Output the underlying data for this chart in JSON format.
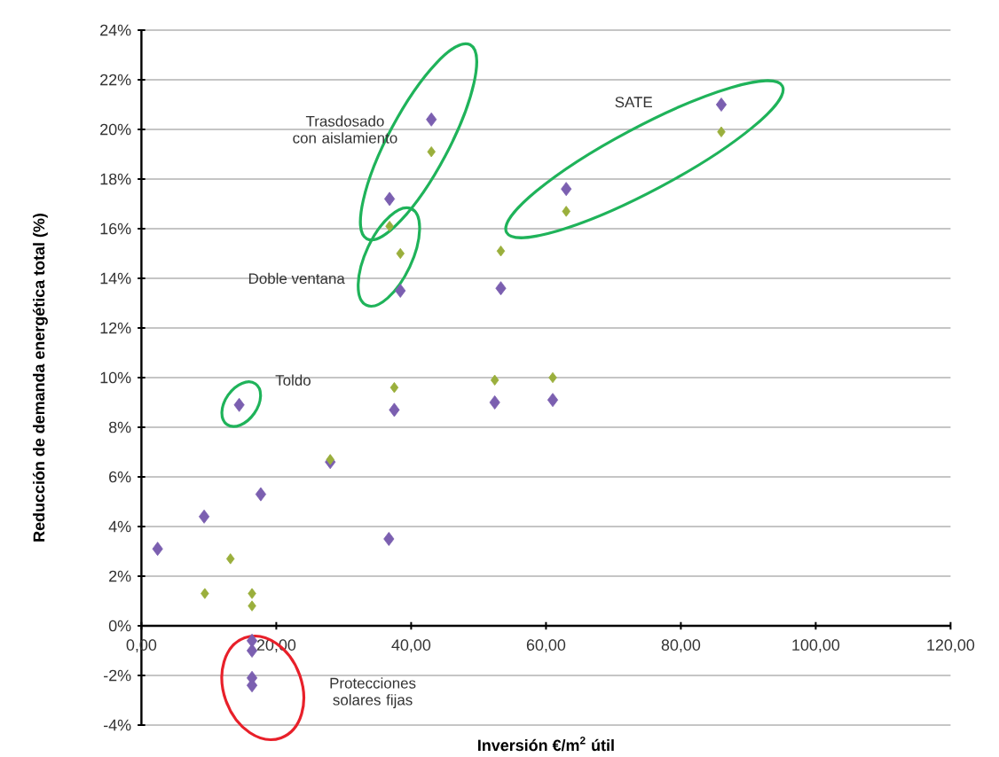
{
  "chart_data": {
    "type": "scatter",
    "xlabel": "Inversión €/m$^{2}$ útil",
    "ylabel": "Reducción de demanda energética total (%)",
    "xlim": [
      0,
      120
    ],
    "ylim": [
      -4,
      24
    ],
    "xticks": [
      {
        "value": 0,
        "label": "0,00"
      },
      {
        "value": 20,
        "label": "20,00"
      },
      {
        "value": 40,
        "label": "40,00"
      },
      {
        "value": 60,
        "label": "60,00"
      },
      {
        "value": 80,
        "label": "80,00"
      },
      {
        "value": 100,
        "label": "100,00"
      },
      {
        "value": 120,
        "label": "120,00"
      }
    ],
    "yticks": [
      {
        "value": -4,
        "label": "-4%"
      },
      {
        "value": -2,
        "label": "-2%"
      },
      {
        "value": 0,
        "label": "0%"
      },
      {
        "value": 2,
        "label": "2%"
      },
      {
        "value": 4,
        "label": "4%"
      },
      {
        "value": 6,
        "label": "6%"
      },
      {
        "value": 8,
        "label": "8%"
      },
      {
        "value": 10,
        "label": "10%"
      },
      {
        "value": 12,
        "label": "12%"
      },
      {
        "value": 14,
        "label": "14%"
      },
      {
        "value": 16,
        "label": "16%"
      },
      {
        "value": 18,
        "label": "18%"
      },
      {
        "value": 20,
        "label": "20%"
      },
      {
        "value": 22,
        "label": "22%"
      },
      {
        "value": 24,
        "label": "24%"
      }
    ],
    "grid": "y",
    "marker": "diamond",
    "series": [
      {
        "color": "#7b5fb0",
        "x": [
          2.4,
          9.3,
          14.5,
          17.7,
          16.4,
          16.4,
          16.4,
          16.4,
          28,
          36.7,
          37.5,
          52.4,
          61,
          43,
          36.8,
          38.4,
          53.3,
          63,
          86
        ],
        "values": [
          3.1,
          4.4,
          8.9,
          5.3,
          -0.6,
          -1.0,
          -2.1,
          -2.4,
          6.6,
          3.5,
          8.7,
          9.0,
          9.1,
          20.4,
          17.2,
          13.5,
          13.6,
          17.6,
          21.0
        ]
      },
      {
        "color": "#9aaf3c",
        "x": [
          9.4,
          13.2,
          16.4,
          16.4,
          28,
          37.5,
          52.4,
          61,
          43,
          36.8,
          38.4,
          53.3,
          63,
          86
        ],
        "values": [
          1.3,
          2.7,
          1.3,
          0.8,
          6.7,
          9.6,
          9.9,
          10.0,
          19.1,
          16.1,
          15.0,
          15.1,
          16.7,
          19.9
        ]
      }
    ],
    "annotations": [
      "Trasdosado con aislamiento",
      "Doble ventana",
      "Toldo",
      "SATE",
      "Protecciones solares fijas"
    ]
  }
}
